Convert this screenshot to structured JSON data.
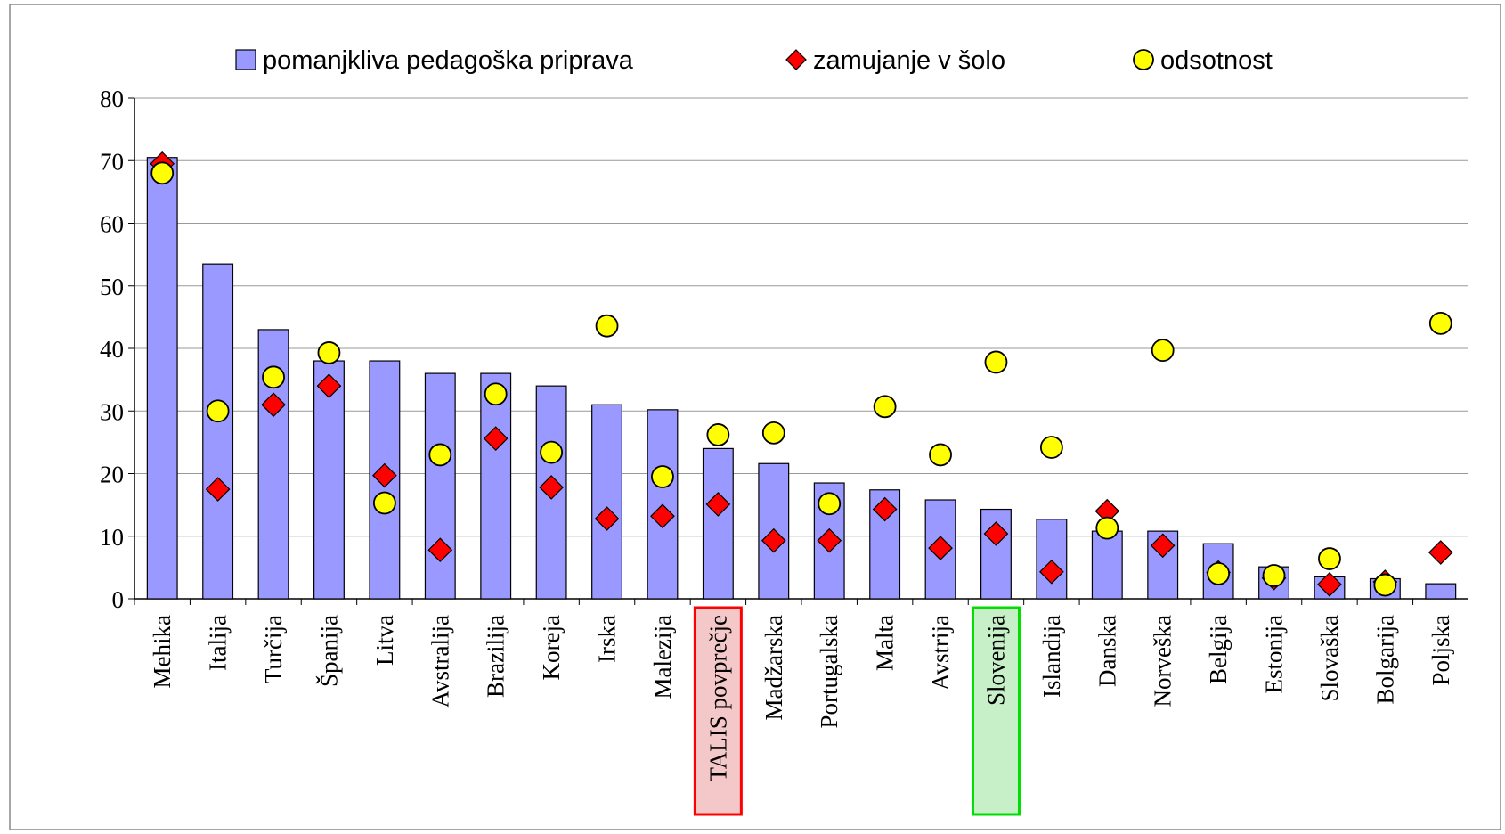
{
  "chart_data": {
    "type": "bar",
    "categories": [
      "Mehika",
      "Italija",
      "Turčija",
      "Španija",
      "Litva",
      "Avstralija",
      "Brazilija",
      "Koreja",
      "Irska",
      "Malezija",
      "TALIS povprečje",
      "Madžarska",
      "Portugalska",
      "Malta",
      "Avstrija",
      "Slovenija",
      "Islandija",
      "Danska",
      "Norveška",
      "Belgija",
      "Estonija",
      "Slovaška",
      "Bolgarija",
      "Poljska"
    ],
    "series": [
      {
        "name": "pomanjkliva pedagoška priprava",
        "color": "#9999ff",
        "marker": "bar",
        "values": [
          70.5,
          53.5,
          43,
          38,
          38,
          36,
          36,
          34,
          31,
          30.2,
          24,
          21.6,
          18.5,
          17.4,
          15.8,
          14.3,
          12.7,
          10.8,
          10.8,
          8.8,
          5.1,
          3.5,
          3.2,
          2.4
        ]
      },
      {
        "name": "zamujanje v šolo",
        "color": "#ff0000",
        "marker": "diamond",
        "values": [
          69.5,
          17.5,
          31,
          34,
          19.7,
          7.8,
          25.6,
          17.8,
          12.8,
          13.2,
          15.1,
          9.3,
          9.3,
          14.3,
          8.1,
          10.4,
          4.3,
          14,
          8.5,
          4.2,
          3.3,
          2.3,
          2.7,
          7.4
        ]
      },
      {
        "name": "odsotnost",
        "color": "#ffff00",
        "marker": "circle",
        "values": [
          68,
          30,
          35.4,
          39.3,
          15.3,
          23,
          32.7,
          23.4,
          43.6,
          19.5,
          26.2,
          26.5,
          15.2,
          30.7,
          23,
          37.8,
          24.2,
          11.3,
          39.7,
          4,
          3.7,
          6.4,
          2.2,
          44
        ]
      }
    ],
    "ylim": [
      0,
      80
    ],
    "yticks": [
      0,
      10,
      20,
      30,
      40,
      50,
      60,
      70,
      80
    ],
    "grid": true
  }
}
